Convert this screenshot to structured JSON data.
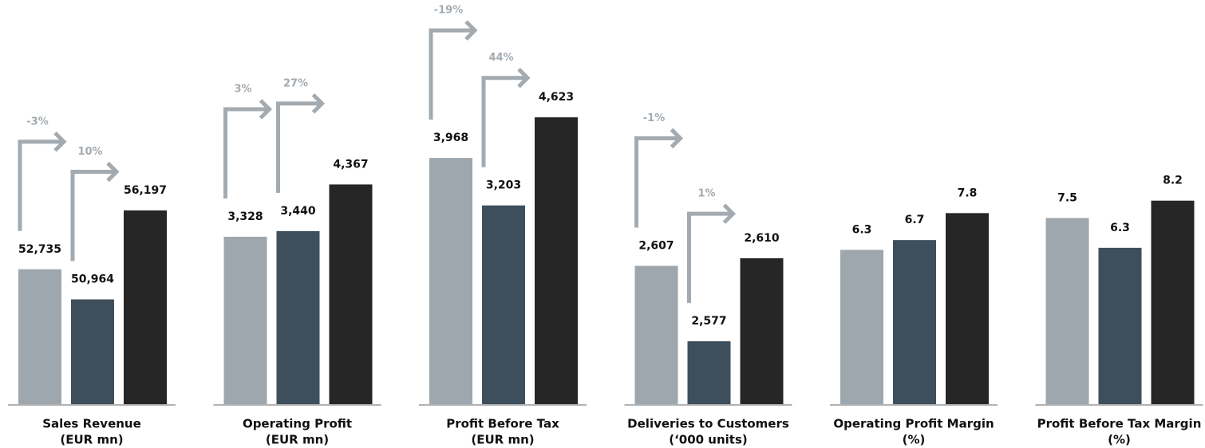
{
  "chart_data": [
    {
      "type": "bar",
      "xlabel": [
        "Sales Revenue",
        "(EUR mn)"
      ],
      "values": [
        52735,
        50964,
        56197
      ],
      "value_labels": [
        "52,735",
        "50,964",
        "56,197"
      ],
      "colors": [
        "#9ea7ad",
        "#3d4f5c",
        "#262626"
      ],
      "ylim": [
        44800,
        66700
      ],
      "changes": [
        -3,
        10
      ],
      "change_labels": [
        "-3%",
        "10%"
      ]
    },
    {
      "type": "bar",
      "xlabel": [
        "Operating Profit",
        "(EUR mn)"
      ],
      "values": [
        3328,
        3440,
        4367
      ],
      "value_labels": [
        "3,328",
        "3,440",
        "4,367"
      ],
      "colors": [
        "#9ea7ad",
        "#3d4f5c",
        "#262626"
      ],
      "ylim": [
        0,
        7400
      ],
      "changes": [
        3,
        27
      ],
      "change_labels": [
        "3%",
        "27%"
      ]
    },
    {
      "type": "bar",
      "xlabel": [
        "Profit Before Tax",
        "(EUR mn)"
      ],
      "values": [
        3968,
        3203,
        4623
      ],
      "value_labels": [
        "3,968",
        "3,203",
        "4,623"
      ],
      "colors": [
        "#9ea7ad",
        "#3d4f5c",
        "#262626"
      ],
      "ylim": [
        0,
        6000
      ],
      "changes": [
        -19,
        44
      ],
      "change_labels": [
        "-19%",
        "44%"
      ]
    },
    {
      "type": "bar",
      "xlabel": [
        "Deliveries to Customers",
        "(‘000 units)"
      ],
      "values": [
        2607,
        2577,
        2610
      ],
      "value_labels": [
        "2,607",
        "2,577",
        "2,610"
      ],
      "colors": [
        "#9ea7ad",
        "#3d4f5c",
        "#262626"
      ],
      "ylim": [
        2552,
        2700
      ],
      "changes": [
        -1,
        1
      ],
      "change_labels": [
        "-1%",
        "1%"
      ]
    },
    {
      "type": "bar",
      "xlabel": [
        "Operating Profit Margin",
        "(%)"
      ],
      "values": [
        6.3,
        6.7,
        7.8
      ],
      "colors": [
        "#9ea7ad",
        "#3d4f5c",
        "#262626"
      ],
      "ylim": [
        0,
        15.2
      ]
    },
    {
      "type": "bar",
      "xlabel": [
        "Profit Before Tax Margin",
        "(%)"
      ],
      "values": [
        7.5,
        6.3,
        8.2
      ],
      "colors": [
        "#9ea7ad",
        "#3d4f5c",
        "#262626"
      ],
      "ylim": [
        0,
        15
      ]
    }
  ]
}
